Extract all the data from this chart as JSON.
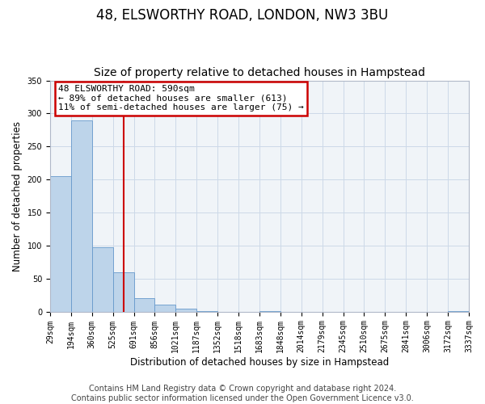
{
  "title": "48, ELSWORTHY ROAD, LONDON, NW3 3BU",
  "subtitle": "Size of property relative to detached houses in Hampstead",
  "bar_heights": [
    205,
    290,
    97,
    60,
    20,
    11,
    4,
    1,
    0,
    0,
    1,
    0,
    0,
    0,
    0,
    0,
    0,
    0,
    0,
    1
  ],
  "bin_labels": [
    "29sqm",
    "194sqm",
    "360sqm",
    "525sqm",
    "691sqm",
    "856sqm",
    "1021sqm",
    "1187sqm",
    "1352sqm",
    "1518sqm",
    "1683sqm",
    "1848sqm",
    "2014sqm",
    "2179sqm",
    "2345sqm",
    "2510sqm",
    "2675sqm",
    "2841sqm",
    "3006sqm",
    "3172sqm",
    "3337sqm"
  ],
  "bar_color": "#bdd4ea",
  "bar_edge_color": "#6699cc",
  "vline_x": 3.5,
  "vline_color": "#cc0000",
  "annotation_text": "48 ELSWORTHY ROAD: 590sqm\n← 89% of detached houses are smaller (613)\n11% of semi-detached houses are larger (75) →",
  "annotation_box_color": "#cc0000",
  "ylabel": "Number of detached properties",
  "xlabel": "Distribution of detached houses by size in Hampstead",
  "ylim": [
    0,
    350
  ],
  "yticks": [
    0,
    50,
    100,
    150,
    200,
    250,
    300,
    350
  ],
  "grid_color": "#ccd9e8",
  "footnote": "Contains HM Land Registry data © Crown copyright and database right 2024.\nContains public sector information licensed under the Open Government Licence v3.0.",
  "title_fontsize": 12,
  "subtitle_fontsize": 10,
  "label_fontsize": 8.5,
  "tick_fontsize": 7,
  "footnote_fontsize": 7,
  "annot_fontsize": 8
}
